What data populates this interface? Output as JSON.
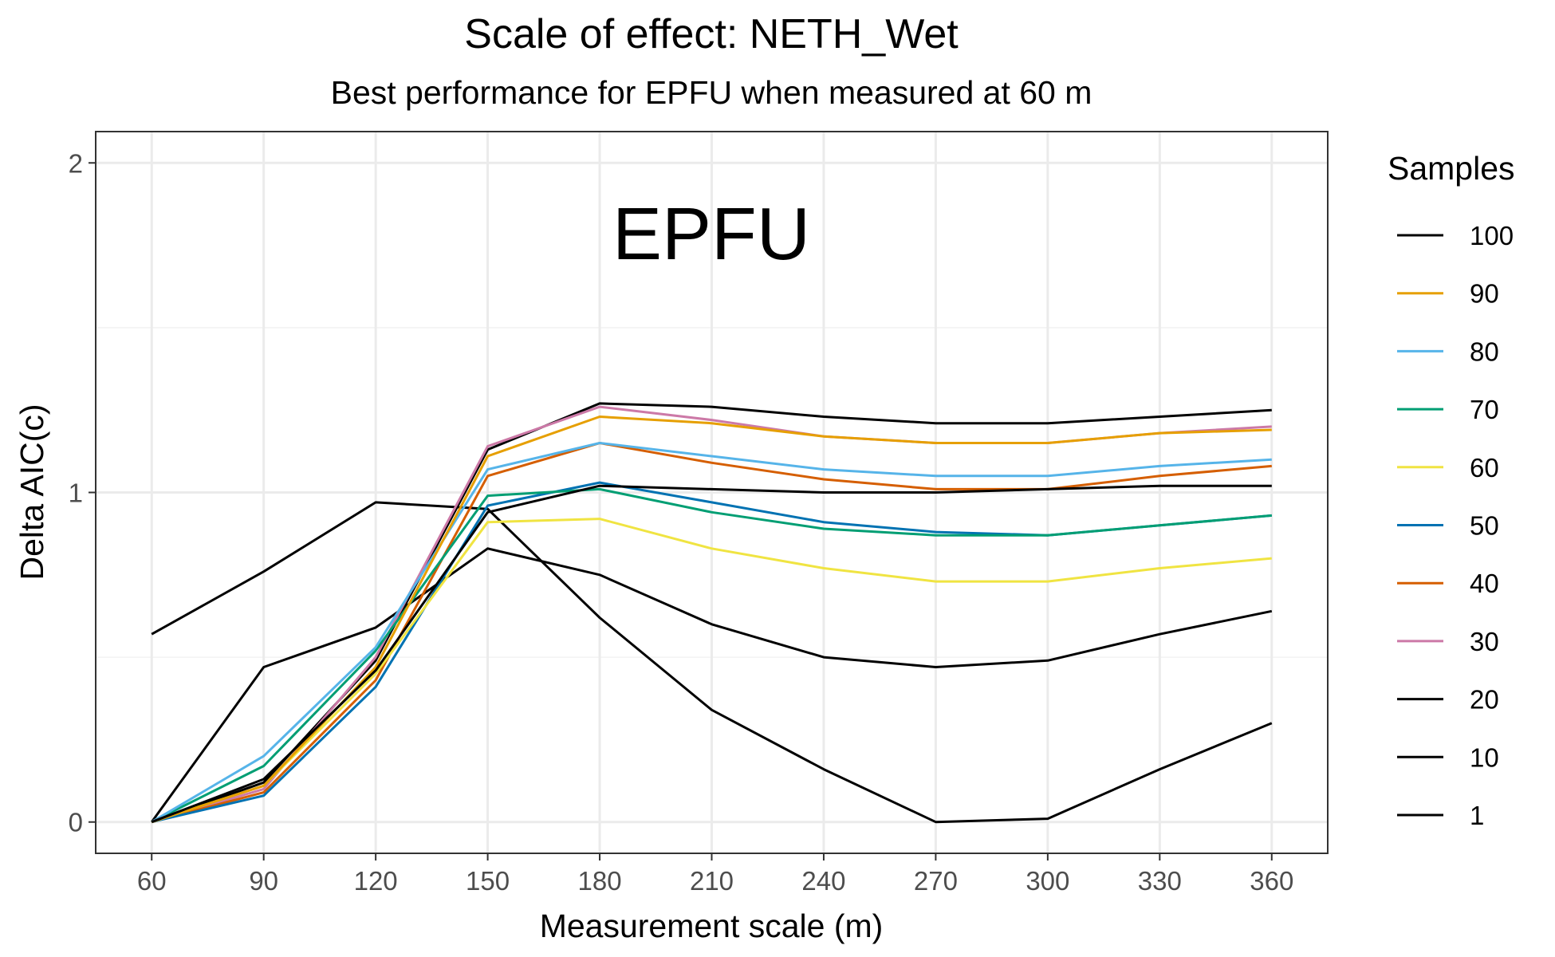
{
  "chart_data": {
    "type": "line",
    "title": "Scale of effect: NETH_Wet",
    "subtitle": "Best performance for EPFU when measured at 60 m",
    "xlabel": "Measurement scale (m)",
    "ylabel": "Delta AIC(c)",
    "annotation": "EPFU",
    "x": [
      60,
      90,
      120,
      150,
      180,
      210,
      240,
      270,
      300,
      330,
      360
    ],
    "xlim": [
      45,
      375
    ],
    "ylim": [
      -0.095,
      2.095
    ],
    "x_ticks": [
      60,
      90,
      120,
      150,
      180,
      210,
      240,
      270,
      300,
      330,
      360
    ],
    "y_ticks": [
      0,
      1,
      2
    ],
    "grid": true,
    "legend": {
      "title": "Samples",
      "position": "right"
    },
    "series": [
      {
        "name": "100",
        "color": "#000000",
        "values": [
          0,
          0.13,
          0.46,
          0.94,
          1.02,
          1.01,
          1.0,
          1.0,
          1.01,
          1.02,
          1.02
        ]
      },
      {
        "name": "90",
        "color": "#E69F00",
        "values": [
          0,
          0.11,
          0.47,
          1.11,
          1.23,
          1.21,
          1.17,
          1.15,
          1.15,
          1.18,
          1.19
        ]
      },
      {
        "name": "80",
        "color": "#56B4E9",
        "values": [
          0,
          0.2,
          0.53,
          1.07,
          1.15,
          1.11,
          1.07,
          1.05,
          1.05,
          1.08,
          1.1
        ]
      },
      {
        "name": "70",
        "color": "#009E73",
        "values": [
          0,
          0.17,
          0.52,
          0.99,
          1.01,
          0.94,
          0.89,
          0.87,
          0.87,
          0.9,
          0.93
        ]
      },
      {
        "name": "60",
        "color": "#F0E442",
        "values": [
          0,
          0.11,
          0.45,
          0.91,
          0.92,
          0.83,
          0.77,
          0.73,
          0.73,
          0.77,
          0.8
        ]
      },
      {
        "name": "50",
        "color": "#0072B2",
        "values": [
          0,
          0.08,
          0.41,
          0.96,
          1.03,
          0.97,
          0.91,
          0.88,
          0.87,
          0.9,
          0.93
        ]
      },
      {
        "name": "40",
        "color": "#D55E00",
        "values": [
          0,
          0.09,
          0.43,
          1.05,
          1.15,
          1.09,
          1.04,
          1.01,
          1.01,
          1.05,
          1.08
        ]
      },
      {
        "name": "30",
        "color": "#CC79A7",
        "values": [
          0,
          0.1,
          0.5,
          1.14,
          1.26,
          1.22,
          1.17,
          1.15,
          1.15,
          1.18,
          1.2
        ]
      },
      {
        "name": "20",
        "color": "#000000",
        "values": [
          0,
          0.12,
          0.49,
          1.13,
          1.27,
          1.26,
          1.23,
          1.21,
          1.21,
          1.23,
          1.25
        ]
      },
      {
        "name": "10",
        "color": "#000000",
        "values": [
          0,
          0.47,
          0.59,
          0.83,
          0.75,
          0.6,
          0.5,
          0.47,
          0.49,
          0.57,
          0.64
        ]
      },
      {
        "name": "1",
        "color": "#000000",
        "values": [
          0.57,
          0.76,
          0.97,
          0.95,
          0.62,
          0.34,
          0.16,
          0.0,
          0.01,
          0.16,
          0.3
        ]
      }
    ]
  }
}
